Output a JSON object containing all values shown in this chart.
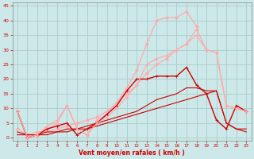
{
  "background_color": "#cce8e8",
  "grid_color": "#aacccc",
  "xlabel": "Vent moyen/en rafales ( km/h )",
  "xlim": [
    -0.5,
    23.5
  ],
  "ylim": [
    -1,
    46
  ],
  "yticks": [
    0,
    5,
    10,
    15,
    20,
    25,
    30,
    35,
    40,
    45
  ],
  "xticks": [
    0,
    1,
    2,
    3,
    4,
    5,
    6,
    7,
    8,
    9,
    10,
    11,
    12,
    13,
    14,
    15,
    16,
    17,
    18,
    19,
    20,
    21,
    22,
    23
  ],
  "lines": [
    {
      "x": [
        0,
        1,
        2,
        3,
        4,
        5,
        6,
        7,
        8,
        9,
        10,
        11,
        12,
        13,
        14,
        15,
        16,
        17,
        18,
        19,
        20,
        21,
        22,
        23
      ],
      "y": [
        9,
        0,
        1,
        3,
        5,
        11,
        3,
        1,
        6,
        8,
        12,
        17,
        23,
        32,
        40,
        41,
        41,
        43,
        38,
        null,
        null,
        null,
        null,
        null
      ],
      "color": "#ffaaaa",
      "lw": 0.9,
      "marker": "D",
      "ms": 2.0
    },
    {
      "x": [
        0,
        1,
        2,
        3,
        4,
        5,
        6,
        7,
        8,
        9,
        10,
        11,
        12,
        13,
        14,
        15,
        16,
        17,
        18,
        19,
        20,
        21,
        22,
        23
      ],
      "y": [
        3,
        1,
        2,
        2,
        3,
        4,
        5,
        6,
        7,
        9,
        12,
        15,
        18,
        22,
        25,
        27,
        30,
        32,
        37,
        30,
        29,
        11,
        10,
        9
      ],
      "color": "#ffaaaa",
      "lw": 0.9,
      "marker": "D",
      "ms": 2.0
    },
    {
      "x": [
        0,
        1,
        2,
        3,
        4,
        5,
        6,
        7,
        8,
        9,
        10,
        11,
        12,
        13,
        14,
        15,
        16,
        17,
        18,
        19,
        20,
        21,
        22,
        23
      ],
      "y": [
        9,
        0,
        1,
        3,
        4,
        5,
        1,
        3,
        5,
        8,
        11,
        16,
        20,
        20,
        21,
        21,
        21,
        24,
        18,
        15,
        6,
        3,
        11,
        9
      ],
      "color": "#cc0000",
      "lw": 1.0,
      "marker": "+",
      "ms": 3.5
    },
    {
      "x": [
        0,
        1,
        2,
        3,
        4,
        5,
        6,
        7,
        8,
        9,
        10,
        11,
        12,
        13,
        14,
        15,
        16,
        17,
        18,
        19,
        20,
        21,
        22,
        23
      ],
      "y": [
        1,
        1,
        1,
        1,
        2,
        2,
        3,
        3,
        4,
        5,
        6,
        7,
        8,
        9,
        10,
        11,
        12,
        13,
        14,
        15,
        16,
        5,
        3,
        2
      ],
      "color": "#cc0000",
      "lw": 0.8,
      "marker": null,
      "ms": 0
    },
    {
      "x": [
        0,
        1,
        2,
        3,
        4,
        5,
        6,
        7,
        8,
        9,
        10,
        11,
        12,
        13,
        14,
        15,
        16,
        17,
        18,
        19,
        20,
        21,
        22,
        23
      ],
      "y": [
        2,
        1,
        1,
        2,
        2,
        3,
        3,
        4,
        5,
        6,
        7,
        8,
        9,
        11,
        13,
        14,
        15,
        17,
        17,
        16,
        16,
        5,
        3,
        3
      ],
      "color": "#cc0000",
      "lw": 0.8,
      "marker": null,
      "ms": 0
    },
    {
      "x": [
        0,
        1,
        2,
        3,
        4,
        5,
        6,
        7,
        8,
        9,
        10,
        11,
        12,
        13,
        14,
        15,
        16,
        17,
        18,
        19,
        20,
        21,
        22,
        23
      ],
      "y": [
        9,
        0,
        1,
        4,
        6,
        11,
        3,
        1,
        5,
        7,
        10,
        14,
        18,
        25,
        27,
        28,
        30,
        32,
        35,
        30,
        29,
        11,
        10,
        9
      ],
      "color": "#ffaaaa",
      "lw": 0.9,
      "marker": "^",
      "ms": 2.0
    }
  ]
}
